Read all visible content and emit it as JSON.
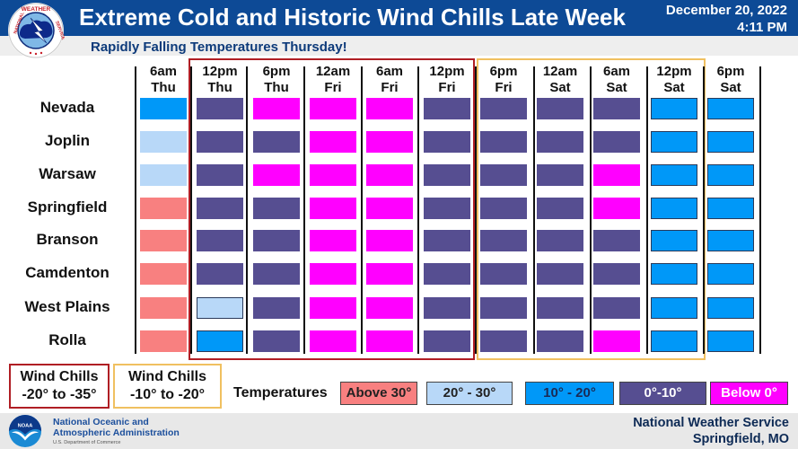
{
  "header": {
    "title": "Extreme Cold and Historic Wind Chills Late Week",
    "date": "December 20, 2022",
    "time": "4:11 PM",
    "subtitle": "Rapidly Falling Temperatures Thursday!"
  },
  "columns": [
    {
      "time": "6am",
      "day": "Thu"
    },
    {
      "time": "12pm",
      "day": "Thu"
    },
    {
      "time": "6pm",
      "day": "Thu"
    },
    {
      "time": "12am",
      "day": "Fri"
    },
    {
      "time": "6am",
      "day": "Fri"
    },
    {
      "time": "12pm",
      "day": "Fri"
    },
    {
      "time": "6pm",
      "day": "Fri"
    },
    {
      "time": "12am",
      "day": "Sat"
    },
    {
      "time": "6am",
      "day": "Sat"
    },
    {
      "time": "12pm",
      "day": "Sat"
    },
    {
      "time": "6pm",
      "day": "Sat"
    }
  ],
  "rows": [
    {
      "location": "Nevada",
      "cells": [
        "10-20",
        "0-10",
        "below0",
        "below0",
        "below0",
        "0-10",
        "0-10",
        "0-10",
        "0-10",
        "10-20",
        "10-20"
      ]
    },
    {
      "location": "Joplin",
      "cells": [
        "20-30",
        "0-10",
        "0-10",
        "below0",
        "below0",
        "0-10",
        "0-10",
        "0-10",
        "0-10",
        "10-20",
        "10-20"
      ]
    },
    {
      "location": "Warsaw",
      "cells": [
        "20-30",
        "0-10",
        "below0",
        "below0",
        "below0",
        "0-10",
        "0-10",
        "0-10",
        "below0",
        "10-20",
        "10-20"
      ]
    },
    {
      "location": "Springfield",
      "cells": [
        "above30",
        "0-10",
        "0-10",
        "below0",
        "below0",
        "0-10",
        "0-10",
        "0-10",
        "below0",
        "10-20",
        "10-20"
      ]
    },
    {
      "location": "Branson",
      "cells": [
        "above30",
        "0-10",
        "0-10",
        "below0",
        "below0",
        "0-10",
        "0-10",
        "0-10",
        "0-10",
        "10-20",
        "10-20"
      ]
    },
    {
      "location": "Camdenton",
      "cells": [
        "above30",
        "0-10",
        "0-10",
        "below0",
        "below0",
        "0-10",
        "0-10",
        "0-10",
        "0-10",
        "10-20",
        "10-20"
      ]
    },
    {
      "location": "West Plains",
      "cells": [
        "above30",
        "20-30",
        "0-10",
        "below0",
        "below0",
        "0-10",
        "0-10",
        "0-10",
        "0-10",
        "10-20",
        "10-20"
      ]
    },
    {
      "location": "Rolla",
      "cells": [
        "above30",
        "10-20",
        "0-10",
        "below0",
        "below0",
        "0-10",
        "0-10",
        "0-10",
        "below0",
        "10-20",
        "10-20"
      ]
    }
  ],
  "wind_chill_groups": [
    {
      "line1": "Wind Chills",
      "line2": "-20° to -35°",
      "color": "#b01e24",
      "columns": "12pm Thu - 12pm Fri"
    },
    {
      "line1": "Wind Chills",
      "line2": "-10° to -20°",
      "color": "#f0c060",
      "columns": "6pm Fri - 6am Sat"
    }
  ],
  "legend": {
    "label": "Temperatures",
    "items": [
      {
        "key": "above30",
        "label": "Above 30°",
        "color": "#f88080",
        "text": "#222222"
      },
      {
        "key": "20-30",
        "label": "20° - 30°",
        "color": "#b8d8f8",
        "text": "#222222"
      },
      {
        "key": "10-20",
        "label": "10° - 20°",
        "color": "#0098f8",
        "text": "#1a2a55"
      },
      {
        "key": "0-10",
        "label": "0°-10°",
        "color": "#564e91",
        "text": "#ffffff"
      },
      {
        "key": "below0",
        "label": "Below 0°",
        "color": "#ff00ff",
        "text": "#ffffff"
      }
    ]
  },
  "footer": {
    "noaa_line1": "National Oceanic and",
    "noaa_line2": "Atmospheric Administration",
    "noaa_sub": "U.S. Department of Commerce",
    "nws_line1": "National Weather Service",
    "nws_line2": "Springfield, MO"
  },
  "icons": {
    "nws_logo": "nws-logo-icon",
    "noaa_logo": "noaa-logo-icon"
  }
}
